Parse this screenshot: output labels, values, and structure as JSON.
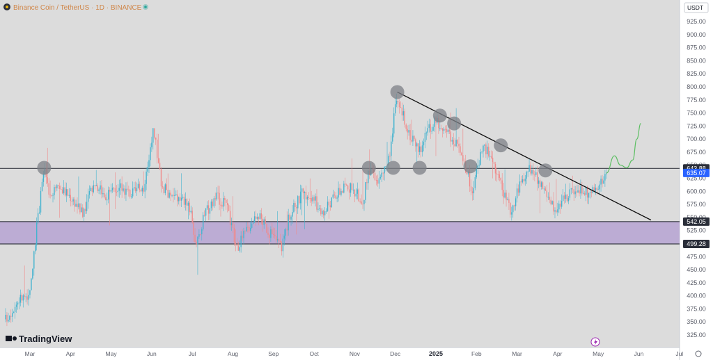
{
  "header": {
    "title": "Binance Coin / TetherUS · 1D · BINANCE",
    "currency_label": "USDT",
    "brand": "TradingView"
  },
  "colors": {
    "up": "#44b3cf",
    "down": "#f08a8a",
    "zone_fill": "#b9a9d3",
    "trendline": "#111111",
    "projection": "#5cbf62",
    "marker": "#7e8087",
    "background": "#dcdcdc",
    "axis_background": "#ffffff"
  },
  "chart_data": {
    "type": "candlestick",
    "title": "Binance Coin / TetherUS · 1D · BINANCE",
    "ylim": [
      310,
      940
    ],
    "y_ticks": [
      "925.00",
      "900.00",
      "875.00",
      "850.00",
      "825.00",
      "800.00",
      "775.00",
      "750.00",
      "725.00",
      "700.00",
      "675.00",
      "650.00",
      "625.00",
      "600.00",
      "575.00",
      "550.00",
      "525.00",
      "500.00",
      "475.00",
      "450.00",
      "425.00",
      "400.00",
      "375.00",
      "350.00",
      "325.00"
    ],
    "x_tick_labels": [
      {
        "label": "Mar",
        "x": 0.6
      },
      {
        "label": "Apr",
        "x": 1.6
      },
      {
        "label": "May",
        "x": 2.6
      },
      {
        "label": "Jun",
        "x": 3.6
      },
      {
        "label": "Jul",
        "x": 4.6
      },
      {
        "label": "Aug",
        "x": 5.6
      },
      {
        "label": "Sep",
        "x": 6.6
      },
      {
        "label": "Oct",
        "x": 7.6
      },
      {
        "label": "Nov",
        "x": 8.6
      },
      {
        "label": "Dec",
        "x": 9.6
      },
      {
        "label": "2025",
        "x": 10.6,
        "bold": true
      },
      {
        "label": "Feb",
        "x": 11.6
      },
      {
        "label": "Mar",
        "x": 12.6
      },
      {
        "label": "Apr",
        "x": 13.6
      },
      {
        "label": "May",
        "x": 14.6
      },
      {
        "label": "Jun",
        "x": 15.6
      },
      {
        "label": "Jul",
        "x": 16.6
      }
    ],
    "price_path": [
      [
        0.0,
        355
      ],
      [
        0.35,
        395
      ],
      [
        0.6,
        400
      ],
      [
        0.75,
        520
      ],
      [
        0.95,
        640
      ],
      [
        1.1,
        585
      ],
      [
        1.3,
        610
      ],
      [
        1.6,
        590
      ],
      [
        1.9,
        560
      ],
      [
        2.2,
        615
      ],
      [
        2.5,
        590
      ],
      [
        2.8,
        610
      ],
      [
        3.1,
        595
      ],
      [
        3.4,
        610
      ],
      [
        3.65,
        718
      ],
      [
        3.85,
        610
      ],
      [
        4.1,
        590
      ],
      [
        4.5,
        580
      ],
      [
        4.7,
        495
      ],
      [
        4.9,
        555
      ],
      [
        5.2,
        590
      ],
      [
        5.45,
        570
      ],
      [
        5.7,
        490
      ],
      [
        5.9,
        520
      ],
      [
        6.2,
        560
      ],
      [
        6.5,
        520
      ],
      [
        6.8,
        495
      ],
      [
        7.0,
        555
      ],
      [
        7.3,
        595
      ],
      [
        7.6,
        585
      ],
      [
        7.8,
        555
      ],
      [
        8.1,
        590
      ],
      [
        8.4,
        610
      ],
      [
        8.6,
        600
      ],
      [
        8.8,
        580
      ],
      [
        8.95,
        640
      ],
      [
        9.2,
        620
      ],
      [
        9.45,
        660
      ],
      [
        9.6,
        770
      ],
      [
        9.8,
        745
      ],
      [
        10.0,
        700
      ],
      [
        10.2,
        680
      ],
      [
        10.4,
        715
      ],
      [
        10.6,
        735
      ],
      [
        10.8,
        725
      ],
      [
        11.0,
        700
      ],
      [
        11.2,
        680
      ],
      [
        11.5,
        600
      ],
      [
        11.75,
        690
      ],
      [
        12.0,
        660
      ],
      [
        12.2,
        610
      ],
      [
        12.45,
        560
      ],
      [
        12.6,
        600
      ],
      [
        12.9,
        640
      ],
      [
        13.1,
        625
      ],
      [
        13.3,
        600
      ],
      [
        13.55,
        560
      ],
      [
        13.8,
        590
      ],
      [
        14.1,
        605
      ],
      [
        14.4,
        595
      ],
      [
        14.65,
        615
      ],
      [
        14.8,
        635
      ]
    ],
    "levels": [
      {
        "price": 643.88,
        "label": "643.88",
        "style": "dark"
      },
      {
        "price": 635.07,
        "label": "635.07",
        "style": "current"
      },
      {
        "price": 542.05,
        "label": "542.05",
        "style": "dark"
      },
      {
        "price": 499.28,
        "label": "499.28",
        "style": "dark"
      }
    ],
    "zone": {
      "upper": 542.05,
      "lower": 499.28
    },
    "trendline": {
      "start": [
        9.65,
        790
      ],
      "end": [
        15.9,
        545
      ]
    },
    "projection": [
      [
        14.8,
        635
      ],
      [
        15.0,
        668
      ],
      [
        15.15,
        650
      ],
      [
        15.3,
        645
      ],
      [
        15.45,
        660
      ],
      [
        15.55,
        700
      ],
      [
        15.65,
        730
      ]
    ],
    "markers": [
      {
        "x": 0.95,
        "y": 645
      },
      {
        "x": 8.95,
        "y": 645
      },
      {
        "x": 9.55,
        "y": 645
      },
      {
        "x": 9.65,
        "y": 790
      },
      {
        "x": 10.2,
        "y": 645
      },
      {
        "x": 10.7,
        "y": 745
      },
      {
        "x": 11.05,
        "y": 730
      },
      {
        "x": 11.45,
        "y": 648
      },
      {
        "x": 12.2,
        "y": 688
      },
      {
        "x": 13.3,
        "y": 640
      }
    ]
  }
}
